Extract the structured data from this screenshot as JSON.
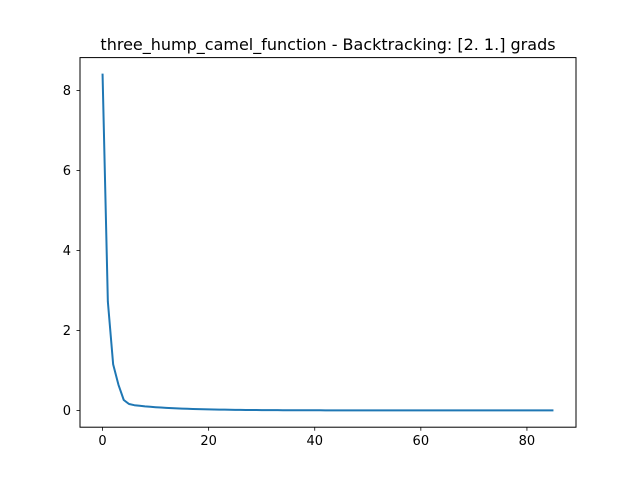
{
  "chart_data": {
    "type": "line",
    "title": "three_hump_camel_function - Backtracking: [2. 1.] grads",
    "xlabel": "",
    "ylabel": "",
    "xlim": [
      -4.25,
      89.25
    ],
    "ylim": [
      -0.42,
      8.82
    ],
    "xticks": [
      0,
      20,
      40,
      60,
      80
    ],
    "yticks": [
      0,
      2,
      4,
      6,
      8
    ],
    "grid": false,
    "series": [
      {
        "color": "#1f77b4",
        "x": [
          0,
          1,
          2,
          3,
          4,
          5,
          6,
          7,
          8,
          9,
          10,
          11,
          12,
          13,
          14,
          15,
          16,
          17,
          18,
          19,
          20,
          21,
          22,
          23,
          24,
          25,
          26,
          27,
          28,
          29,
          30,
          31,
          32,
          33,
          34,
          35,
          36,
          37,
          38,
          39,
          40,
          41,
          42,
          43,
          44,
          45,
          46,
          47,
          48,
          49,
          50,
          51,
          52,
          53,
          54,
          55,
          56,
          57,
          58,
          59,
          60,
          61,
          62,
          63,
          64,
          65,
          66,
          67,
          68,
          69,
          70,
          71,
          72,
          73,
          74,
          75,
          76,
          77,
          78,
          79,
          80,
          81,
          82,
          83,
          84,
          85
        ],
        "y": [
          8.42,
          2.72,
          1.15,
          0.64,
          0.26,
          0.16,
          0.13,
          0.115,
          0.1,
          0.09,
          0.08,
          0.072,
          0.064,
          0.057,
          0.051,
          0.045,
          0.04,
          0.036,
          0.032,
          0.028,
          0.025,
          0.022,
          0.02,
          0.018,
          0.016,
          0.014,
          0.012,
          0.011,
          0.01,
          0.009,
          0.008,
          0.007,
          0.006,
          0.0055,
          0.005,
          0.0045,
          0.004,
          0.0035,
          0.003,
          0.0028,
          0.0025,
          0.0022,
          0.002,
          0.0018,
          0.0016,
          0.0014,
          0.0012,
          0.0011,
          0.001,
          0.0009,
          0.0008,
          0.0007,
          0.0006,
          0.0005,
          0.0005,
          0.0004,
          0.0004,
          0.0003,
          0.0003,
          0.0003,
          0.0002,
          0.0002,
          0.0002,
          0.0002,
          0.0001,
          0.0001,
          0.0001,
          0.0001,
          0.0001,
          0.0001,
          0.0001,
          0.0001,
          0,
          0,
          0,
          0,
          0,
          0,
          0,
          0,
          0,
          0,
          0,
          0,
          0,
          0
        ]
      }
    ]
  }
}
